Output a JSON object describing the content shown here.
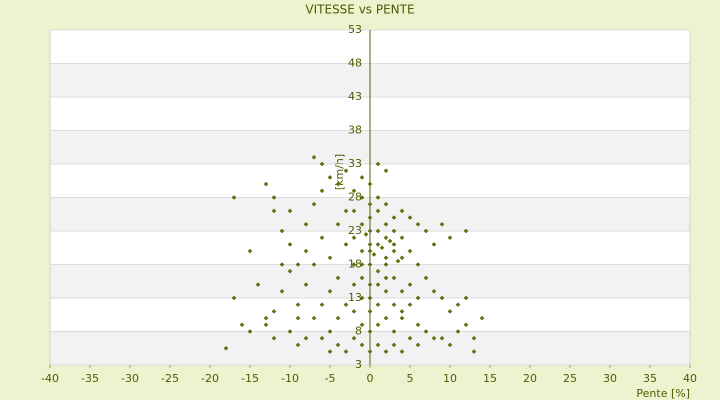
{
  "chart_data": {
    "type": "scatter",
    "title": "VITESSE vs PENTE",
    "x_label": "Pente [%]",
    "y_label": "[km/h]",
    "color": "#667a00",
    "grid": true,
    "xlim": [
      -40,
      40
    ],
    "xticks": [
      -40,
      -35,
      -30,
      -25,
      -20,
      -15,
      -10,
      -5,
      0,
      5,
      10,
      15,
      20,
      25,
      30,
      35,
      40
    ],
    "ylim": [
      3,
      53
    ],
    "yticks": [
      3,
      8,
      13,
      18,
      23,
      28,
      33,
      38,
      43,
      48,
      53
    ],
    "x": [
      -2,
      -1,
      0,
      1,
      2,
      3,
      4,
      0,
      1,
      -1,
      2,
      3,
      0,
      1,
      -2,
      4,
      5,
      -3,
      0,
      1,
      2,
      -1,
      0,
      3,
      2,
      -2,
      1,
      0,
      2,
      -1,
      0,
      3,
      4,
      5,
      6,
      7,
      8,
      9,
      10,
      11,
      12,
      13,
      14,
      -3,
      -4,
      -5,
      -6,
      -8,
      -9,
      -10,
      -12,
      -13,
      -17,
      -18,
      -15,
      -17,
      -13,
      -12,
      -11,
      -10,
      -8,
      -7,
      -6,
      -5,
      -6,
      -7,
      -4,
      -3,
      -2,
      0,
      1,
      0,
      2,
      3,
      6,
      7,
      8,
      9,
      10,
      12,
      6,
      7,
      8,
      9,
      6,
      5,
      4,
      -4,
      -5,
      -6,
      -7,
      -8,
      -9,
      -10,
      -11,
      -12,
      -14,
      -13,
      -7,
      -6,
      -5,
      -4,
      -3,
      -2,
      -1,
      0,
      1,
      2,
      3,
      4,
      5,
      6,
      -1,
      -2,
      -3,
      -4,
      -5,
      -9,
      10,
      11,
      12,
      13,
      -8,
      -9,
      -11,
      -12,
      -15,
      -16,
      -10,
      5,
      4,
      1,
      -1,
      2,
      0.5,
      1.5,
      -0.5,
      2.5,
      3.5,
      1,
      2,
      -1,
      0,
      3,
      4,
      1,
      -2,
      -1,
      0,
      2,
      3
    ],
    "values": [
      22,
      24,
      23,
      21,
      22,
      20,
      19,
      25,
      26,
      20,
      24,
      23,
      18,
      17,
      18,
      22,
      20,
      21,
      21,
      23,
      19,
      16,
      15,
      16,
      14,
      15,
      12,
      11,
      10,
      9,
      8,
      8,
      10,
      12,
      9,
      8,
      7,
      7,
      6,
      8,
      9,
      7,
      10,
      12,
      10,
      8,
      7,
      7,
      6,
      8,
      7,
      9,
      13,
      5.5,
      20,
      28,
      30,
      26,
      23,
      21,
      24,
      27,
      29,
      31,
      33,
      34,
      30,
      32,
      29,
      30,
      33,
      27,
      27,
      25,
      24,
      23,
      21,
      24,
      22,
      23,
      18,
      16,
      14,
      13,
      13,
      15,
      14,
      16,
      19,
      22,
      18,
      15,
      12,
      17,
      14,
      11,
      15,
      10,
      10,
      12,
      14,
      24,
      26,
      26,
      28,
      5,
      6,
      5,
      6,
      5,
      7,
      6,
      6,
      7,
      5,
      6,
      5,
      10,
      11,
      12,
      13,
      5,
      20,
      18,
      18,
      28,
      8,
      9,
      26,
      25,
      26,
      28,
      31,
      32,
      19.5,
      20.5,
      22.5,
      21.5,
      18.5,
      15,
      16,
      13,
      13,
      12,
      11,
      9,
      11,
      18,
      20,
      18,
      21
    ]
  }
}
